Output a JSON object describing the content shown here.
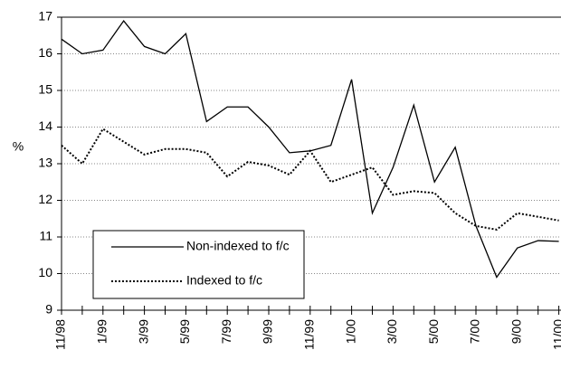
{
  "chart_data": {
    "type": "line",
    "y_label": "%",
    "categories": [
      "11/98",
      null,
      "1/99",
      null,
      "3/99",
      null,
      "5/99",
      null,
      "7/99",
      null,
      "9/99",
      null,
      "11/99",
      null,
      "1/00",
      null,
      "3/00",
      null,
      "5/00",
      null,
      "7/00",
      null,
      "9/00",
      null,
      "11/00"
    ],
    "series": [
      {
        "name": "Non-indexed to f/c",
        "color": "#000000",
        "style": "solid",
        "values": [
          16.4,
          16.0,
          16.1,
          16.9,
          16.2,
          16.0,
          16.55,
          14.15,
          14.55,
          14.55,
          14.0,
          13.3,
          13.35,
          13.5,
          15.3,
          11.65,
          12.9,
          14.6,
          12.5,
          13.45,
          11.3,
          9.9,
          10.7,
          10.9,
          10.88
        ]
      },
      {
        "name": "Indexed to f/c",
        "color": "#000000",
        "style": "dotted",
        "values": [
          13.5,
          13.0,
          13.95,
          13.6,
          13.25,
          13.4,
          13.4,
          13.3,
          12.65,
          13.05,
          12.95,
          12.7,
          13.35,
          12.5,
          12.7,
          12.9,
          12.15,
          12.25,
          12.2,
          11.65,
          11.3,
          11.2,
          11.65,
          11.55,
          11.45
        ]
      }
    ],
    "ylim": [
      9,
      17
    ],
    "yticks": [
      9,
      10,
      11,
      12,
      13,
      14,
      15,
      16,
      17
    ],
    "grid": true,
    "legend": "lower left"
  }
}
